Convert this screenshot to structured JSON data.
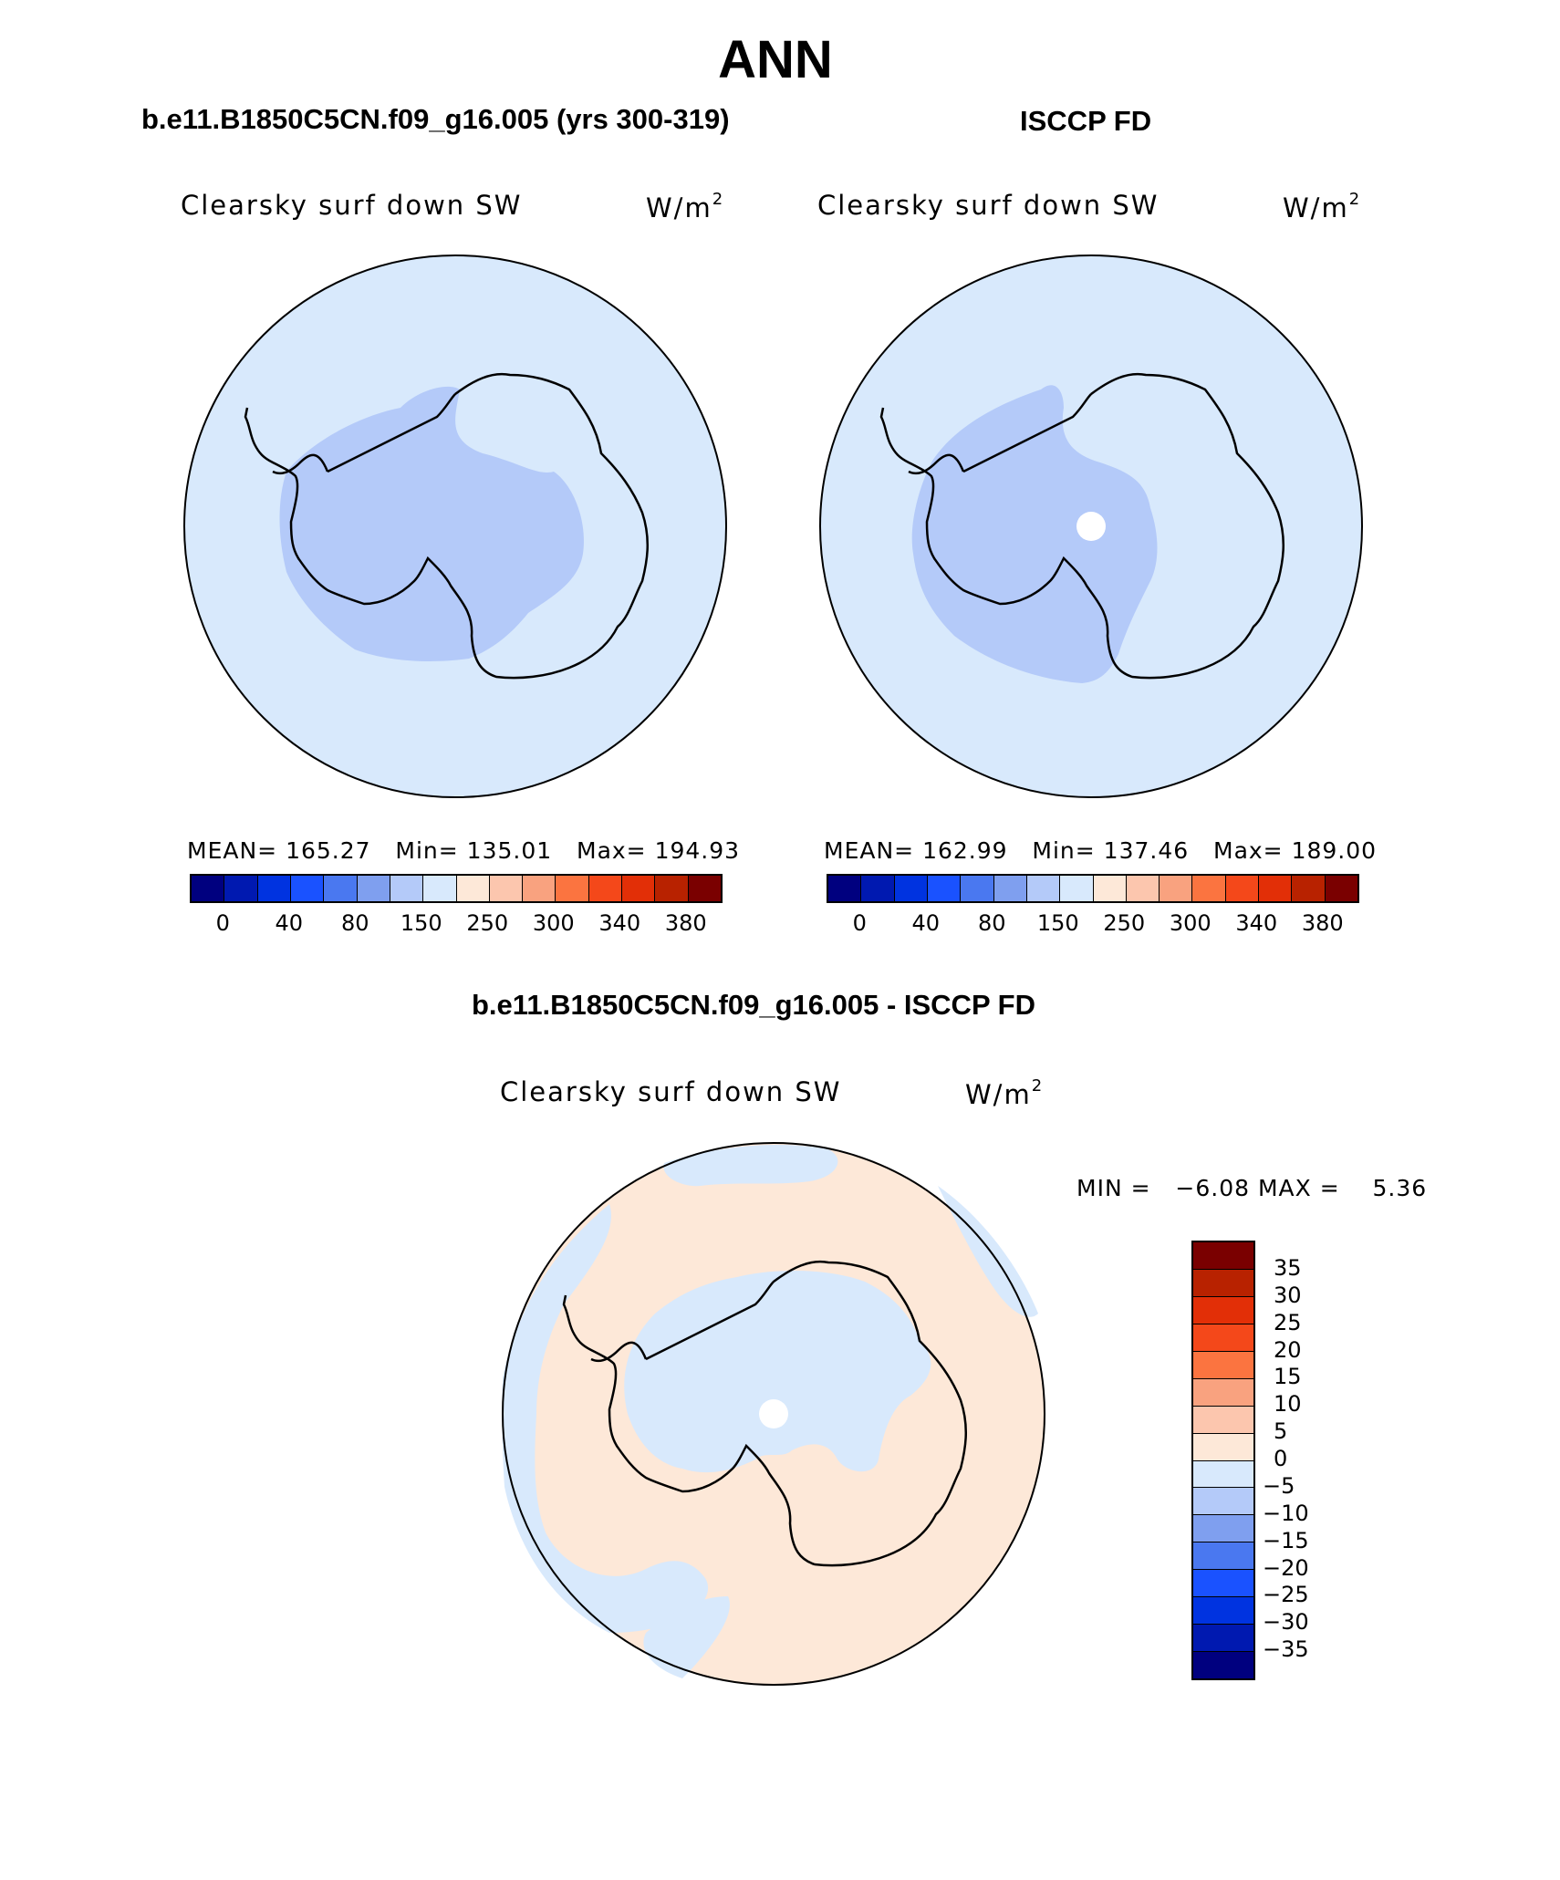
{
  "main_title": "ANN",
  "panels": {
    "model": {
      "title": "b.e11.B1850C5CN.f09_g16.005 (yrs 300-319)",
      "variable": "Clearsky surf down SW",
      "units_base": "W/m",
      "units_exp": "2",
      "mean_label": "MEAN=",
      "mean": "165.27",
      "min_label": "Min=",
      "min": "135.01",
      "max_label": "Max=",
      "max": "194.93"
    },
    "obs": {
      "title": "ISCCP FD",
      "variable": "Clearsky surf down SW",
      "units_base": "W/m",
      "units_exp": "2",
      "mean_label": "MEAN=",
      "mean": "162.99",
      "min_label": "Min=",
      "min": "137.46",
      "max_label": "Max=",
      "max": "189.00"
    },
    "diff": {
      "title": "b.e11.B1850C5CN.f09_g16.005 - ISCCP FD",
      "variable": "Clearsky surf down SW",
      "units_base": "W/m",
      "units_exp": "2",
      "min_label": "MIN =",
      "min": "−6.08",
      "max_label": "MAX =",
      "max": "5.36"
    }
  },
  "colorbar_abs": {
    "colors": [
      "#00007f",
      "#0019b0",
      "#0033e0",
      "#1a52ff",
      "#4a78f0",
      "#7f9fef",
      "#b4caf9",
      "#d8e9fc",
      "#fde8d8",
      "#fcc6ae",
      "#f9a27f",
      "#fb7440",
      "#f4481a",
      "#e22f07",
      "#b82200",
      "#7a0000"
    ],
    "tick_labels": [
      "0",
      "40",
      "80",
      "150",
      "250",
      "300",
      "340",
      "380"
    ]
  },
  "colorbar_diff": {
    "colors_top_to_bottom": [
      "#7a0000",
      "#b82200",
      "#e22f07",
      "#f4481a",
      "#fb7440",
      "#f9a27f",
      "#fcc6ae",
      "#fde8d8",
      "#d8e9fc",
      "#b4caf9",
      "#7f9fef",
      "#4a78f0",
      "#1a52ff",
      "#0033e0",
      "#0019b0",
      "#00007f"
    ],
    "tick_labels": [
      "35",
      "30",
      "25",
      "20",
      "15",
      "10",
      "5",
      "0",
      "−5",
      "−10",
      "−15",
      "−20",
      "−25",
      "−30",
      "−35"
    ]
  },
  "map_colors": {
    "ocean_abs": "#d8e9fc",
    "interior_abs": "#b4caf9",
    "diff_positive": "#fde8d8",
    "diff_negative": "#d8e9fc",
    "missing": "#ffffff"
  }
}
